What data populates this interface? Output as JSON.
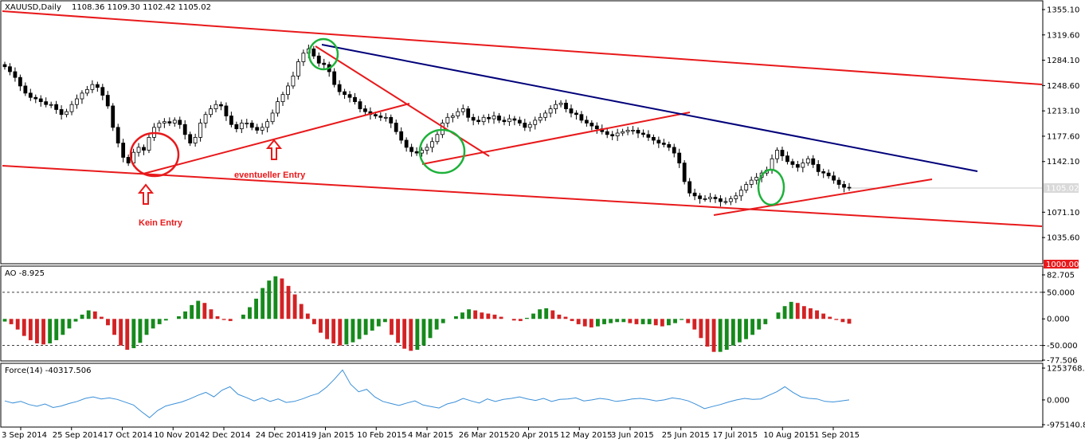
{
  "header": {
    "symbol": "XAUUSD,Daily",
    "ohlc": "1108.36 1109.30 1102.42 1105.02"
  },
  "ao_header": "AO -8.925",
  "force_header": "Force(14) -40317.506",
  "annotations": {
    "kein_entry": "Kein Entry",
    "eventueller_entry": "eventueller Entry"
  },
  "current_price": "1105.02",
  "lower_boundary_price": "1000.00",
  "colors": {
    "trend_line": "#e8191b",
    "resistance_line": "#00007a",
    "circle_green": "#1db13a",
    "circle_red": "#e8191b",
    "ao_up": "#168a1c",
    "ao_down": "#d32224",
    "force_line": "#3a8fd8"
  },
  "chart_data": [
    {
      "type": "candlestick",
      "name": "price",
      "ylim": [
        1000,
        1355.1
      ],
      "y_ticks": [
        "1355.10",
        "1319.60",
        "1284.10",
        "1248.60",
        "1213.10",
        "1177.60",
        "1142.10",
        "1105.02",
        "1071.10",
        "1035.60"
      ],
      "x_ticks": [
        "3 Sep 2014",
        "25 Sep 2014",
        "17 Oct 2014",
        "10 Nov 2014",
        "2 Dec 2014",
        "24 Dec 2014",
        "19 Jan 2015",
        "10 Feb 2015",
        "4 Mar 2015",
        "26 Mar 2015",
        "20 Apr 2015",
        "12 May 2015",
        "3 Jun 2015",
        "25 Jun 2015",
        "17 Jul 2015",
        "10 Aug 2015",
        "1 Sep 2015"
      ],
      "close_path": [
        1275,
        1268,
        1260,
        1248,
        1238,
        1232,
        1230,
        1226,
        1222,
        1222,
        1215,
        1208,
        1212,
        1222,
        1230,
        1238,
        1243,
        1250,
        1246,
        1235,
        1220,
        1190,
        1168,
        1148,
        1140,
        1155,
        1162,
        1158,
        1176,
        1190,
        1196,
        1198,
        1196,
        1200,
        1194,
        1180,
        1168,
        1176,
        1196,
        1208,
        1216,
        1222,
        1220,
        1206,
        1194,
        1188,
        1196,
        1196,
        1190,
        1186,
        1190,
        1198,
        1210,
        1226,
        1236,
        1248,
        1262,
        1282,
        1294,
        1300,
        1290,
        1280,
        1278,
        1268,
        1250,
        1240,
        1236,
        1232,
        1226,
        1216,
        1212,
        1208,
        1206,
        1204,
        1204,
        1196,
        1184,
        1172,
        1162,
        1156,
        1154,
        1158,
        1162,
        1170,
        1180,
        1196,
        1204,
        1206,
        1212,
        1216,
        1204,
        1200,
        1198,
        1204,
        1202,
        1206,
        1200,
        1198,
        1202,
        1200,
        1196,
        1190,
        1194,
        1200,
        1204,
        1210,
        1216,
        1222,
        1224,
        1216,
        1210,
        1208,
        1200,
        1196,
        1192,
        1188,
        1184,
        1180,
        1178,
        1182,
        1184,
        1186,
        1186,
        1182,
        1180,
        1176,
        1172,
        1168,
        1166,
        1162,
        1154,
        1140,
        1114,
        1098,
        1094,
        1090,
        1090,
        1092,
        1090,
        1086,
        1086,
        1090,
        1094,
        1102,
        1110,
        1116,
        1120,
        1126,
        1130,
        1146,
        1158,
        1150,
        1142,
        1138,
        1134,
        1140,
        1146,
        1138,
        1128,
        1126,
        1122,
        1116,
        1110,
        1106,
        1105
      ],
      "annotations": [
        "Kein Entry",
        "eventueller Entry"
      ]
    },
    {
      "type": "bar",
      "name": "AO",
      "y_ticks": [
        "82.705",
        "50.000",
        "0.000",
        "-50.000",
        "-77.506"
      ],
      "values_path": [
        -5,
        -10,
        -20,
        -32,
        -40,
        -46,
        -48,
        -46,
        -40,
        -30,
        -18,
        -5,
        8,
        16,
        14,
        4,
        -12,
        -30,
        -50,
        -58,
        -55,
        -45,
        -30,
        -18,
        -10,
        -3,
        0,
        5,
        14,
        26,
        34,
        30,
        18,
        5,
        -2,
        -4,
        0,
        8,
        22,
        38,
        58,
        72,
        80,
        76,
        62,
        46,
        28,
        10,
        -10,
        -26,
        -38,
        -46,
        -50,
        -48,
        -44,
        -38,
        -30,
        -22,
        -14,
        -6,
        -30,
        -45,
        -56,
        -60,
        -58,
        -50,
        -36,
        -20,
        -8,
        0,
        5,
        12,
        18,
        16,
        12,
        10,
        8,
        4,
        0,
        -3,
        -4,
        2,
        10,
        18,
        20,
        16,
        8,
        4,
        -4,
        -10,
        -14,
        -16,
        -14,
        -10,
        -8,
        -6,
        -6,
        -8,
        -10,
        -10,
        -10,
        -12,
        -14,
        -12,
        -8,
        -2,
        -8,
        -20,
        -36,
        -52,
        -62,
        -62,
        -58,
        -50,
        -44,
        -38,
        -30,
        -20,
        -10,
        0,
        12,
        24,
        32,
        30,
        24,
        20,
        16,
        10,
        4,
        -2,
        -6,
        -9
      ],
      "ylim": [
        -77.506,
        82.705
      ]
    },
    {
      "type": "line",
      "name": "Force(14)",
      "y_ticks": [
        "1253768.63",
        "0.000",
        "-975140.81"
      ],
      "values_path": [
        -40000,
        -120000,
        -60000,
        -180000,
        -250000,
        -160000,
        -300000,
        -240000,
        -140000,
        -60000,
        60000,
        120000,
        40000,
        80000,
        20000,
        -90000,
        -200000,
        -460000,
        -700000,
        -420000,
        -240000,
        -160000,
        -80000,
        40000,
        180000,
        300000,
        120000,
        380000,
        520000,
        220000,
        100000,
        -40000,
        80000,
        -60000,
        40000,
        -100000,
        -60000,
        40000,
        160000,
        260000,
        500000,
        820000,
        1180000,
        620000,
        320000,
        420000,
        120000,
        -60000,
        -140000,
        -220000,
        -120000,
        -40000,
        -200000,
        -260000,
        -320000,
        -160000,
        -80000,
        60000,
        -40000,
        -120000,
        40000,
        -60000,
        20000,
        60000,
        120000,
        40000,
        -20000,
        60000,
        -60000,
        20000,
        40000,
        80000,
        -40000,
        0,
        60000,
        20000,
        -60000,
        -20000,
        40000,
        60000,
        20000,
        -40000,
        0,
        80000,
        40000,
        -40000,
        -180000,
        -340000,
        -260000,
        -180000,
        -80000,
        0,
        60000,
        20000,
        40000,
        180000,
        320000,
        520000,
        300000,
        120000,
        60000,
        40000,
        -60000,
        -80000,
        -40000,
        0
      ],
      "ylim": [
        -975140.81,
        1253768.63
      ]
    }
  ]
}
